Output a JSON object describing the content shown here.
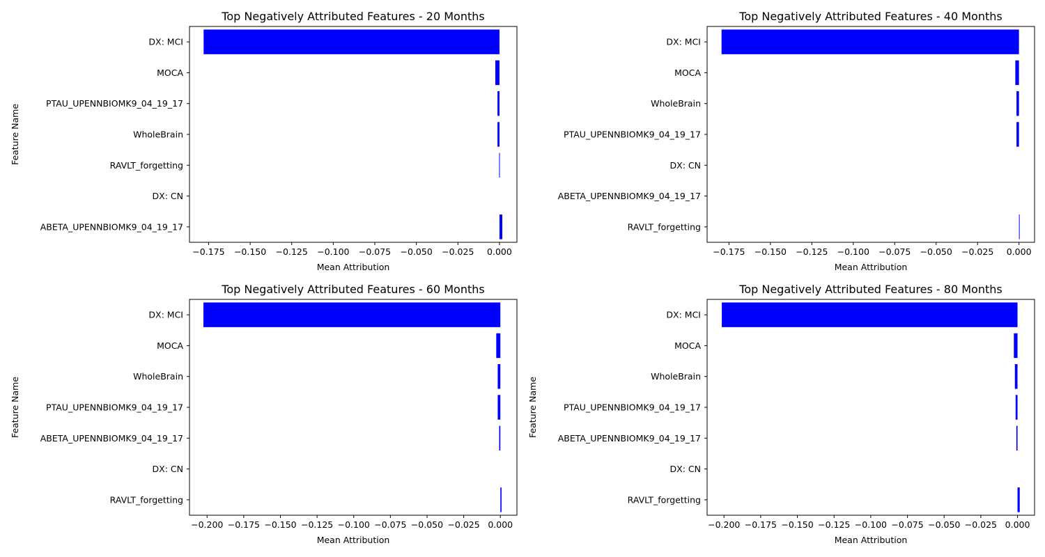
{
  "colors": {
    "bar": "#0000ff",
    "axis": "#000000",
    "background": "#ffffff"
  },
  "chart_data": [
    {
      "type": "bar",
      "orientation": "horizontal",
      "title": "Top Negatively Attributed Features - 20 Months",
      "xlabel": "Mean Attribution",
      "ylabel": "Feature Name",
      "categories": [
        "DX: MCI",
        "MOCA",
        "PTAU_UPENNBIOMK9_04_19_17",
        "WholeBrain",
        "RAVLT_forgetting",
        "DX: CN",
        "ABETA_UPENNBIOMK9_04_19_17"
      ],
      "values": [
        -0.178,
        -0.0025,
        -0.0012,
        -0.0012,
        -0.0002,
        0.0,
        0.0017
      ],
      "xlim": [
        -0.1865,
        0.0105
      ],
      "xticks": [
        -0.175,
        -0.15,
        -0.125,
        -0.1,
        -0.075,
        -0.05,
        -0.025,
        0.0
      ],
      "xtick_labels": [
        "−0.175",
        "−0.150",
        "−0.125",
        "−0.100",
        "−0.075",
        "−0.050",
        "−0.025",
        "0.000"
      ],
      "grid": false
    },
    {
      "type": "bar",
      "orientation": "horizontal",
      "title": "Top Negatively Attributed Features - 40 Months",
      "xlabel": "Mean Attribution",
      "ylabel": "",
      "categories": [
        "DX: MCI",
        "MOCA",
        "WholeBrain",
        "PTAU_UPENNBIOMK9_04_19_17",
        "DX: CN",
        "ABETA_UPENNBIOMK9_04_19_17",
        "RAVLT_forgetting"
      ],
      "values": [
        -0.1795,
        -0.0022,
        -0.0015,
        -0.0015,
        0.0,
        0.0,
        0.0003
      ],
      "xlim": [
        -0.1882,
        0.0094
      ],
      "xticks": [
        -0.175,
        -0.15,
        -0.125,
        -0.1,
        -0.075,
        -0.05,
        -0.025,
        0.0
      ],
      "xtick_labels": [
        "−0.175",
        "−0.150",
        "−0.125",
        "−0.100",
        "−0.075",
        "−0.050",
        "−0.025",
        "0.000"
      ],
      "grid": false
    },
    {
      "type": "bar",
      "orientation": "horizontal",
      "title": "Top Negatively Attributed Features - 60 Months",
      "xlabel": "Mean Attribution",
      "ylabel": "Feature Name",
      "categories": [
        "DX: MCI",
        "MOCA",
        "WholeBrain",
        "PTAU_UPENNBIOMK9_04_19_17",
        "ABETA_UPENNBIOMK9_04_19_17",
        "DX: CN",
        "RAVLT_forgetting"
      ],
      "values": [
        -0.2025,
        -0.0028,
        -0.0018,
        -0.0018,
        -0.0008,
        0.0,
        0.0008
      ],
      "xlim": [
        -0.212,
        0.0113
      ],
      "xticks": [
        -0.2,
        -0.175,
        -0.15,
        -0.125,
        -0.1,
        -0.075,
        -0.05,
        -0.025,
        0.0
      ],
      "xtick_labels": [
        "−0.200",
        "−0.175",
        "−0.150",
        "−0.125",
        "−0.100",
        "−0.075",
        "−0.050",
        "−0.025",
        "0.000"
      ],
      "grid": false
    },
    {
      "type": "bar",
      "orientation": "horizontal",
      "title": "Top Negatively Attributed Features - 80 Months",
      "xlabel": "Mean Attribution",
      "ylabel": "Feature Name",
      "categories": [
        "DX: MCI",
        "MOCA",
        "WholeBrain",
        "PTAU_UPENNBIOMK9_04_19_17",
        "ABETA_UPENNBIOMK9_04_19_17",
        "DX: CN",
        "RAVLT_forgetting"
      ],
      "values": [
        -0.2015,
        -0.0025,
        -0.0018,
        -0.0013,
        -0.0008,
        0.0,
        0.0015
      ],
      "xlim": [
        -0.2115,
        0.0116
      ],
      "xticks": [
        -0.2,
        -0.175,
        -0.15,
        -0.125,
        -0.1,
        -0.075,
        -0.05,
        -0.025,
        0.0
      ],
      "xtick_labels": [
        "−0.200",
        "−0.175",
        "−0.150",
        "−0.125",
        "−0.100",
        "−0.075",
        "−0.050",
        "−0.025",
        "0.000"
      ],
      "grid": false
    }
  ]
}
